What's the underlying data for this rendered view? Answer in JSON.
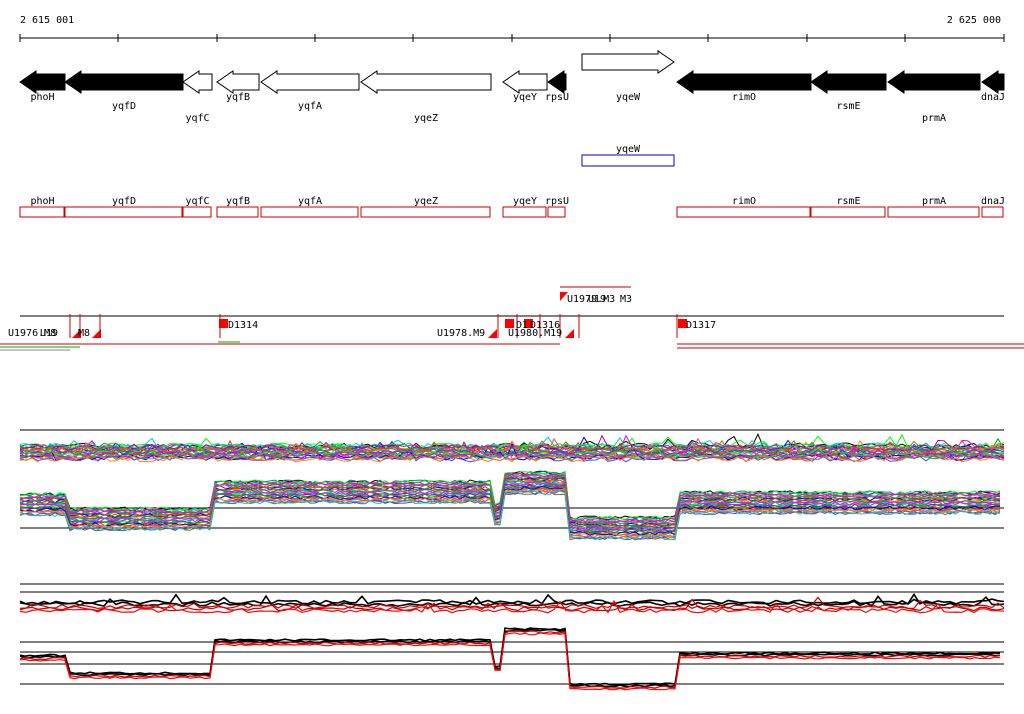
{
  "ruler": {
    "start_label": "2 615 001",
    "end_label": "2 625 000"
  },
  "genes": [
    {
      "name": "phoH",
      "strand": "-",
      "fill": "black",
      "label_row": 1
    },
    {
      "name": "yqfD",
      "strand": "-",
      "fill": "black",
      "label_row": 2
    },
    {
      "name": "yqfC",
      "strand": "-",
      "fill": "white",
      "label_row": 3
    },
    {
      "name": "yqfB",
      "strand": "-",
      "fill": "white",
      "label_row": 1
    },
    {
      "name": "yqfA",
      "strand": "-",
      "fill": "white",
      "label_row": 2
    },
    {
      "name": "yqeZ",
      "strand": "-",
      "fill": "white",
      "label_row": 3
    },
    {
      "name": "yqeY",
      "strand": "-",
      "fill": "white",
      "label_row": 1
    },
    {
      "name": "rpsU",
      "strand": "-",
      "fill": "black",
      "label_row": 1
    },
    {
      "name": "yqeW",
      "strand": "+",
      "fill": "white",
      "label_row": 1
    },
    {
      "name": "rimO",
      "strand": "-",
      "fill": "black",
      "label_row": 1
    },
    {
      "name": "rsmE",
      "strand": "-",
      "fill": "black",
      "label_row": 2
    },
    {
      "name": "prmA",
      "strand": "-",
      "fill": "black",
      "label_row": 3
    },
    {
      "name": "dnaJ",
      "strand": "-",
      "fill": "black",
      "label_row": 1
    }
  ],
  "blue_track": [
    {
      "name": "yqeW",
      "color": "#0000cc"
    }
  ],
  "red_track": {
    "color": "#cc0000",
    "boxes": [
      "phoH",
      "yqfD",
      "yqfC",
      "yqfB",
      "yqfA",
      "yqeZ",
      "yqeY",
      "rpsU",
      "rimO",
      "rsmE",
      "prmA",
      "dnaJ"
    ]
  },
  "features": {
    "labels": [
      {
        "text": "U1978.M9"
      },
      {
        "text": "U1980.M19"
      },
      {
        "text": "D1314"
      },
      {
        "text": "D1316"
      },
      {
        "text": "D1317"
      },
      {
        "text": "U1979.M3"
      },
      {
        "text": "U1976.M8"
      }
    ]
  },
  "colors": {
    "gene_fill": "#000000",
    "box_red": "#cc0000",
    "box_blue": "#0000cc",
    "marker": "#ff0000"
  },
  "profile_palette": [
    "#ff00ff",
    "#00aa00",
    "#0000ff",
    "#ff8800",
    "#00cccc",
    "#aa00aa",
    "#888800",
    "#ff4444",
    "#4444ff",
    "#00ff00",
    "#ff00aa",
    "#808080",
    "#aa5500",
    "#008888"
  ]
}
